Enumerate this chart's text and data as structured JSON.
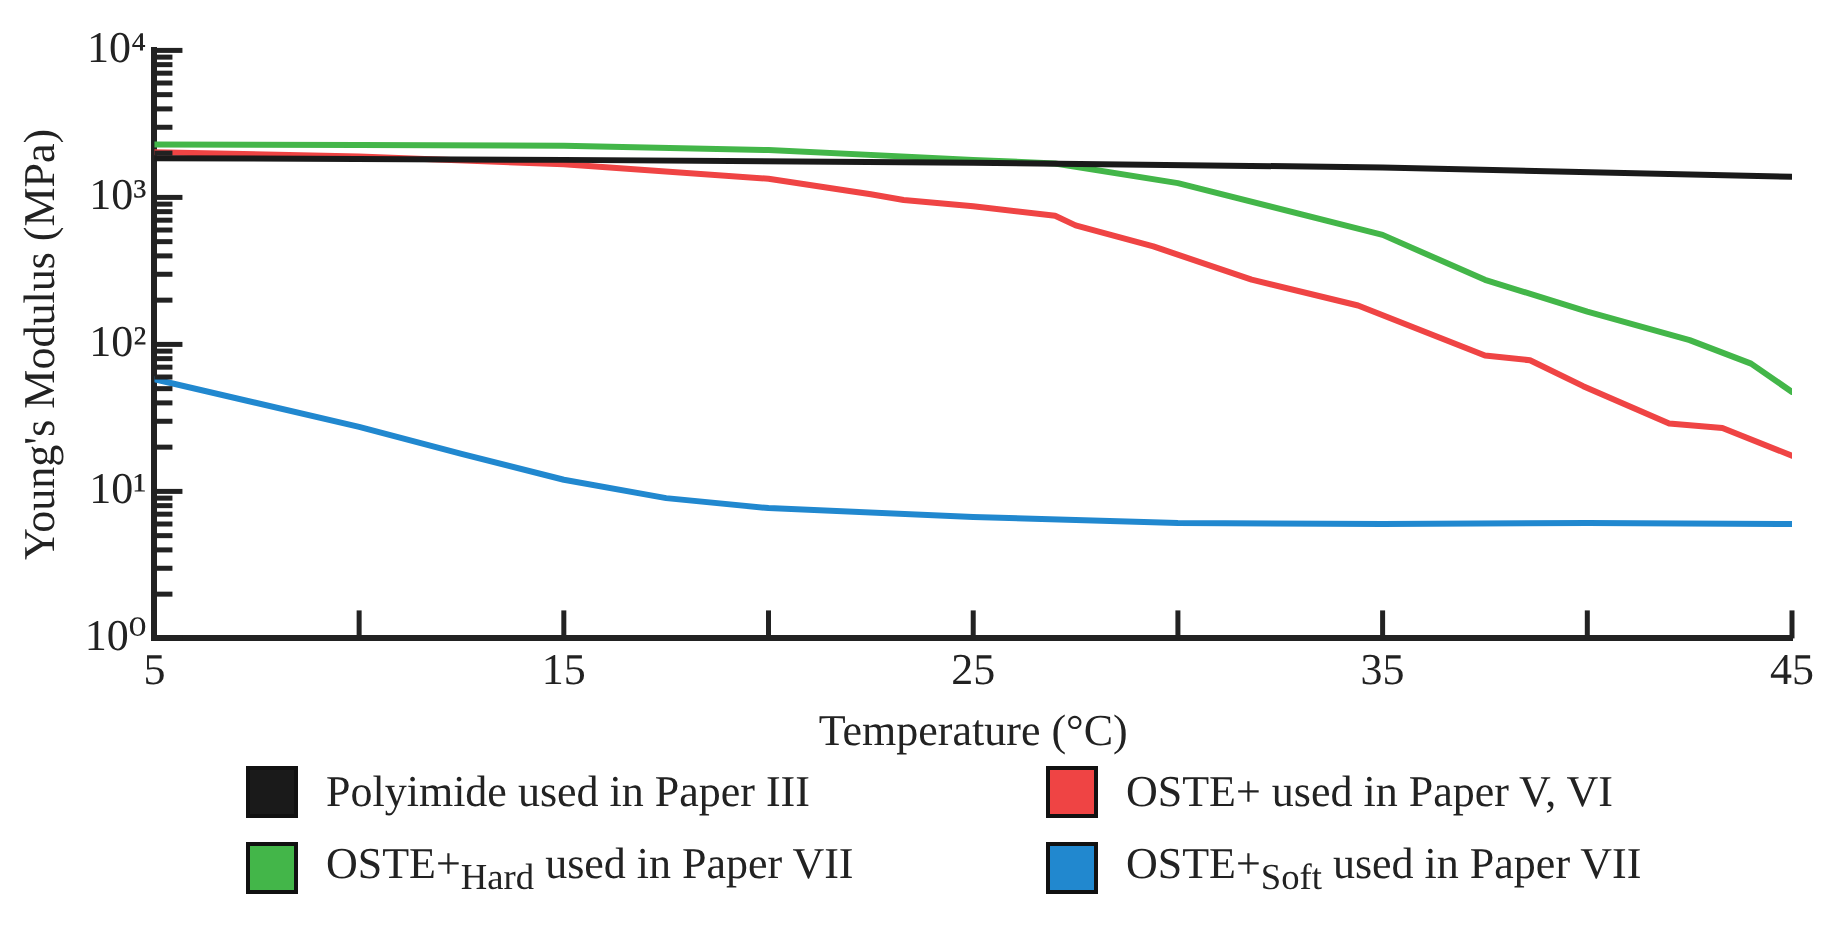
{
  "chart_data": {
    "type": "line",
    "xlabel": "Temperature (°C)",
    "ylabel": "Young's Modulus (MPa)",
    "log": "y",
    "xlim": [
      5,
      45
    ],
    "ylim": [
      1,
      10000
    ],
    "xticks": [
      5,
      {
        "value": 10,
        "label": null
      },
      15,
      {
        "value": 20,
        "label": null
      },
      25,
      {
        "value": 30,
        "label": null
      },
      35,
      {
        "value": 40,
        "label": null
      },
      45
    ],
    "yticks": [
      {
        "value": 1,
        "label": "10⁰"
      },
      {
        "value": 2,
        "label": null
      },
      {
        "value": 3,
        "label": null
      },
      {
        "value": 4,
        "label": null
      },
      {
        "value": 5,
        "label": null
      },
      {
        "value": 6,
        "label": null
      },
      {
        "value": 7,
        "label": null
      },
      {
        "value": 8,
        "label": null
      },
      {
        "value": 9,
        "label": null
      },
      {
        "value": 10,
        "label": "10¹"
      },
      {
        "value": 20,
        "label": null
      },
      {
        "value": 30,
        "label": null
      },
      {
        "value": 40,
        "label": null
      },
      {
        "value": 50,
        "label": null
      },
      {
        "value": 60,
        "label": null
      },
      {
        "value": 70,
        "label": null
      },
      {
        "value": 80,
        "label": null
      },
      {
        "value": 90,
        "label": null
      },
      {
        "value": 100,
        "label": "10²"
      },
      {
        "value": 200,
        "label": null
      },
      {
        "value": 300,
        "label": null
      },
      {
        "value": 400,
        "label": null
      },
      {
        "value": 500,
        "label": null
      },
      {
        "value": 600,
        "label": null
      },
      {
        "value": 700,
        "label": null
      },
      {
        "value": 800,
        "label": null
      },
      {
        "value": 900,
        "label": null
      },
      {
        "value": 1000,
        "label": "10³"
      },
      {
        "value": 2000,
        "label": null
      },
      {
        "value": 3000,
        "label": null
      },
      {
        "value": 4000,
        "label": null
      },
      {
        "value": 5000,
        "label": null
      },
      {
        "value": 6000,
        "label": null
      },
      {
        "value": 7000,
        "label": null
      },
      {
        "value": 8000,
        "label": null
      },
      {
        "value": 9000,
        "label": null
      },
      {
        "value": 10000,
        "label": "10⁴"
      }
    ],
    "grid": false,
    "legend": "bottom",
    "marker": "none",
    "line_style": "solid",
    "series": [
      {
        "name": "Polyimide used in Paper III",
        "color": "#1a1a1a",
        "x": [
          5,
          15,
          25,
          35,
          45
        ],
        "values": [
          1850,
          1800,
          1720,
          1600,
          1380
        ]
      },
      {
        "name": "OSTE+ used in Paper V, VI",
        "color": "#ef4444",
        "x": [
          5,
          10,
          15,
          20,
          22.5,
          23.3,
          25,
          27,
          27.5,
          29.4,
          31.8,
          34.4,
          37.5,
          38.6,
          39.9,
          42,
          43.3,
          45
        ],
        "values": [
          2030,
          1900,
          1680,
          1340,
          1050,
          960,
          870,
          750,
          645,
          464,
          276,
          184,
          84,
          78,
          52,
          29,
          27,
          17.5
        ]
      },
      {
        "name": "OSTE+$_{Hard}$ used in Paper VII",
        "color": "#43b649",
        "x": [
          5,
          10,
          15,
          20,
          25,
          27,
          30,
          35,
          37.5,
          40,
          42.5,
          44,
          45
        ],
        "values": [
          2290,
          2270,
          2250,
          2100,
          1800,
          1700,
          1250,
          556,
          275,
          167,
          107,
          74,
          47.5
        ]
      },
      {
        "name": "OSTE+$_{Soft}$ used in Paper VII",
        "color": "#2188cf",
        "x": [
          5,
          10,
          12.5,
          15,
          17.5,
          20,
          25,
          30,
          35,
          40,
          45
        ],
        "values": [
          58,
          27.5,
          18,
          12,
          9,
          7.7,
          6.7,
          6.1,
          6.0,
          6.1,
          6.0
        ]
      }
    ]
  }
}
